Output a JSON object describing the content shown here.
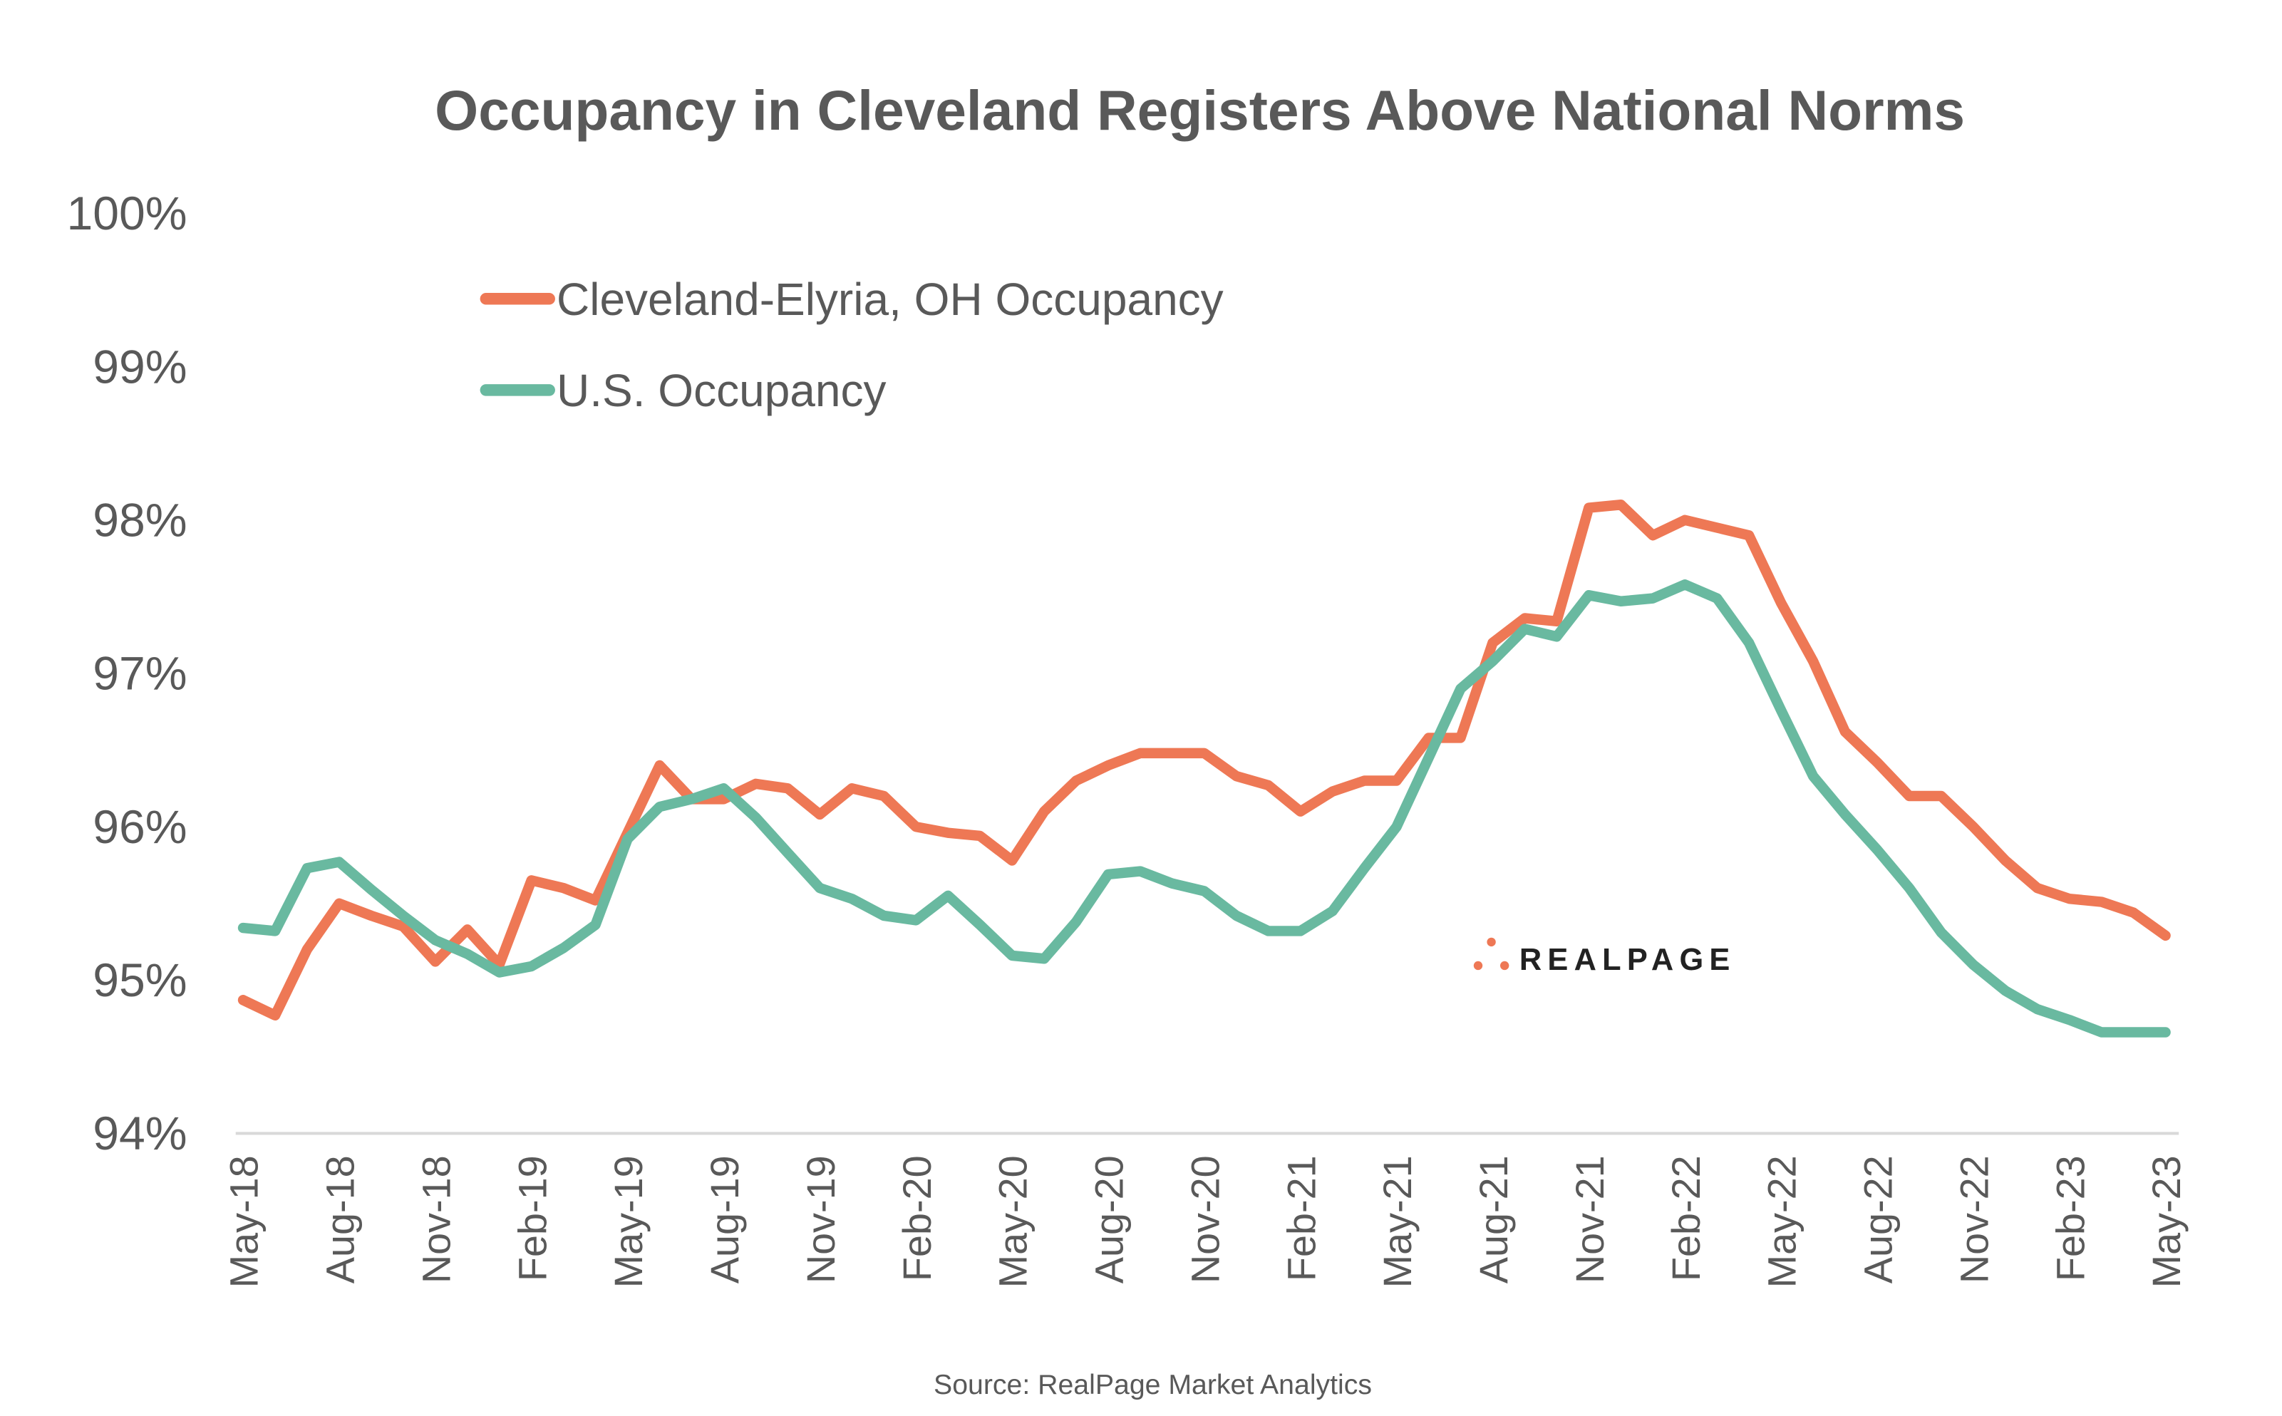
{
  "chart_data": {
    "type": "line",
    "title": "Occupancy in Cleveland Registers Above National Norms",
    "source": "Source: RealPage Market Analytics",
    "logo": "REALPAGE",
    "ylim": [
      94,
      100
    ],
    "yticks": [
      "94%",
      "95%",
      "96%",
      "97%",
      "98%",
      "99%",
      "100%"
    ],
    "ytick_values": [
      94,
      95,
      96,
      97,
      98,
      99,
      100
    ],
    "grid": false,
    "legend_placement": "top-left",
    "x": [
      "May-18",
      "Jun-18",
      "Jul-18",
      "Aug-18",
      "Sep-18",
      "Oct-18",
      "Nov-18",
      "Dec-18",
      "Jan-19",
      "Feb-19",
      "Mar-19",
      "Apr-19",
      "May-19",
      "Jun-19",
      "Jul-19",
      "Aug-19",
      "Sep-19",
      "Oct-19",
      "Nov-19",
      "Dec-19",
      "Jan-20",
      "Feb-20",
      "Mar-20",
      "Apr-20",
      "May-20",
      "Jun-20",
      "Jul-20",
      "Aug-20",
      "Sep-20",
      "Oct-20",
      "Nov-20",
      "Dec-20",
      "Jan-21",
      "Feb-21",
      "Mar-21",
      "Apr-21",
      "May-21",
      "Jun-21",
      "Jul-21",
      "Aug-21",
      "Sep-21",
      "Oct-21",
      "Nov-21",
      "Dec-21",
      "Jan-22",
      "Feb-22",
      "Mar-22",
      "Apr-22",
      "May-22",
      "Jun-22",
      "Jul-22",
      "Aug-22",
      "Sep-22",
      "Oct-22",
      "Nov-22",
      "Dec-22",
      "Jan-23",
      "Feb-23",
      "Mar-23",
      "Apr-23",
      "May-23"
    ],
    "xticks": [
      "May-18",
      "Aug-18",
      "Nov-18",
      "Feb-19",
      "May-19",
      "Aug-19",
      "Nov-19",
      "Feb-20",
      "May-20",
      "Aug-20",
      "Nov-20",
      "Feb-21",
      "May-21",
      "Aug-21",
      "Nov-21",
      "Feb-22",
      "May-22",
      "Aug-22",
      "Nov-22",
      "Feb-23",
      "May-23"
    ],
    "series": [
      {
        "name": "Cleveland-Elyria, OH Occupancy",
        "color": "#EE7855",
        "values": [
          94.87,
          94.77,
          95.2,
          95.5,
          95.42,
          95.35,
          95.12,
          95.33,
          95.1,
          95.65,
          95.6,
          95.52,
          95.96,
          96.4,
          96.18,
          96.18,
          96.28,
          96.25,
          96.08,
          96.25,
          96.2,
          96.0,
          95.96,
          95.94,
          95.78,
          96.1,
          96.3,
          96.4,
          96.48,
          96.48,
          96.48,
          96.33,
          96.27,
          96.1,
          96.23,
          96.3,
          96.3,
          96.58,
          96.58,
          97.2,
          97.36,
          97.34,
          98.08,
          98.1,
          97.9,
          98.0,
          97.95,
          97.9,
          97.46,
          97.08,
          96.62,
          96.42,
          96.2,
          96.2,
          96.0,
          95.78,
          95.6,
          95.53,
          95.51,
          95.44,
          95.29
        ]
      },
      {
        "name": "U.S. Occupancy",
        "color": "#69B9A0",
        "values": [
          95.34,
          95.32,
          95.73,
          95.77,
          95.59,
          95.42,
          95.26,
          95.17,
          95.05,
          95.09,
          95.21,
          95.36,
          95.92,
          96.13,
          96.18,
          96.25,
          96.06,
          95.83,
          95.6,
          95.53,
          95.42,
          95.39,
          95.55,
          95.36,
          95.16,
          95.14,
          95.38,
          95.69,
          95.71,
          95.63,
          95.58,
          95.42,
          95.32,
          95.32,
          95.45,
          95.73,
          96.0,
          96.45,
          96.9,
          97.08,
          97.29,
          97.24,
          97.51,
          97.47,
          97.49,
          97.58,
          97.49,
          97.2,
          96.76,
          96.33,
          96.08,
          95.85,
          95.6,
          95.31,
          95.1,
          94.93,
          94.81,
          94.74,
          94.66,
          94.66,
          94.66
        ]
      }
    ]
  }
}
